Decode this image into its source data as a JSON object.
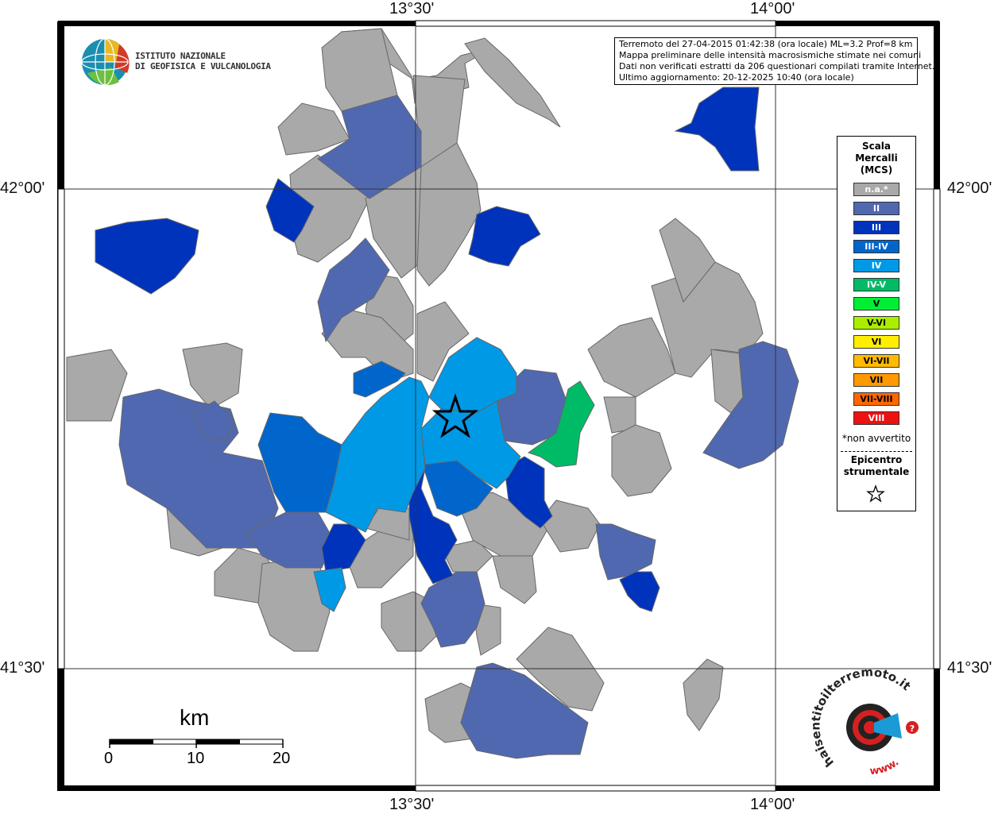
{
  "info": {
    "lines": [
      "Terremoto del 27-04-2015 01:42:38 (ora locale) ML=3.2 Prof=8 km",
      "Mappa preliminare delle intensità macrosismiche stimate nei comuni",
      "Dati non verificati estratti da 206 questionari compilati tramite Internet.",
      "Ultimo aggiornamento: 20-12-2025 10:40 (ora locale)"
    ]
  },
  "institute": {
    "line1": "ISTITUTO NAZIONALE",
    "line2": "DI GEOFISICA E VULCANOLOGIA"
  },
  "coords": {
    "lon1": "13°30'",
    "lon2": "14°00'",
    "lat1": "42°00'",
    "lat2": "41°30'"
  },
  "legend": {
    "title_lines": [
      "Scala",
      "Mercalli",
      "(MCS)"
    ],
    "classes": [
      {
        "label": "n.a.*",
        "color": "#a9a9a9"
      },
      {
        "label": "II",
        "color": "#5068b0"
      },
      {
        "label": "III",
        "color": "#0033bb"
      },
      {
        "label": "III-IV",
        "color": "#0066cc"
      },
      {
        "label": "IV",
        "color": "#0099e6"
      },
      {
        "label": "IV-V",
        "color": "#00bb66"
      },
      {
        "label": "V",
        "color": "#00ee33"
      },
      {
        "label": "V-VI",
        "color": "#aaee00"
      },
      {
        "label": "VI",
        "color": "#ffee00"
      },
      {
        "label": "VI-VII",
        "color": "#ffbb00"
      },
      {
        "label": "VII",
        "color": "#ff9900"
      },
      {
        "label": "VII-VIII",
        "color": "#ff6600"
      },
      {
        "label": "VIII",
        "color": "#ee1111"
      }
    ],
    "note": "*non avvertito",
    "epicentre_lines": [
      "Epicentro",
      "strumentale"
    ]
  },
  "scale": {
    "unit": "km",
    "ticks": [
      "0",
      "10",
      "20"
    ]
  },
  "brand": {
    "text": "haisentitoilterremoto.it",
    "prefix": "www."
  }
}
